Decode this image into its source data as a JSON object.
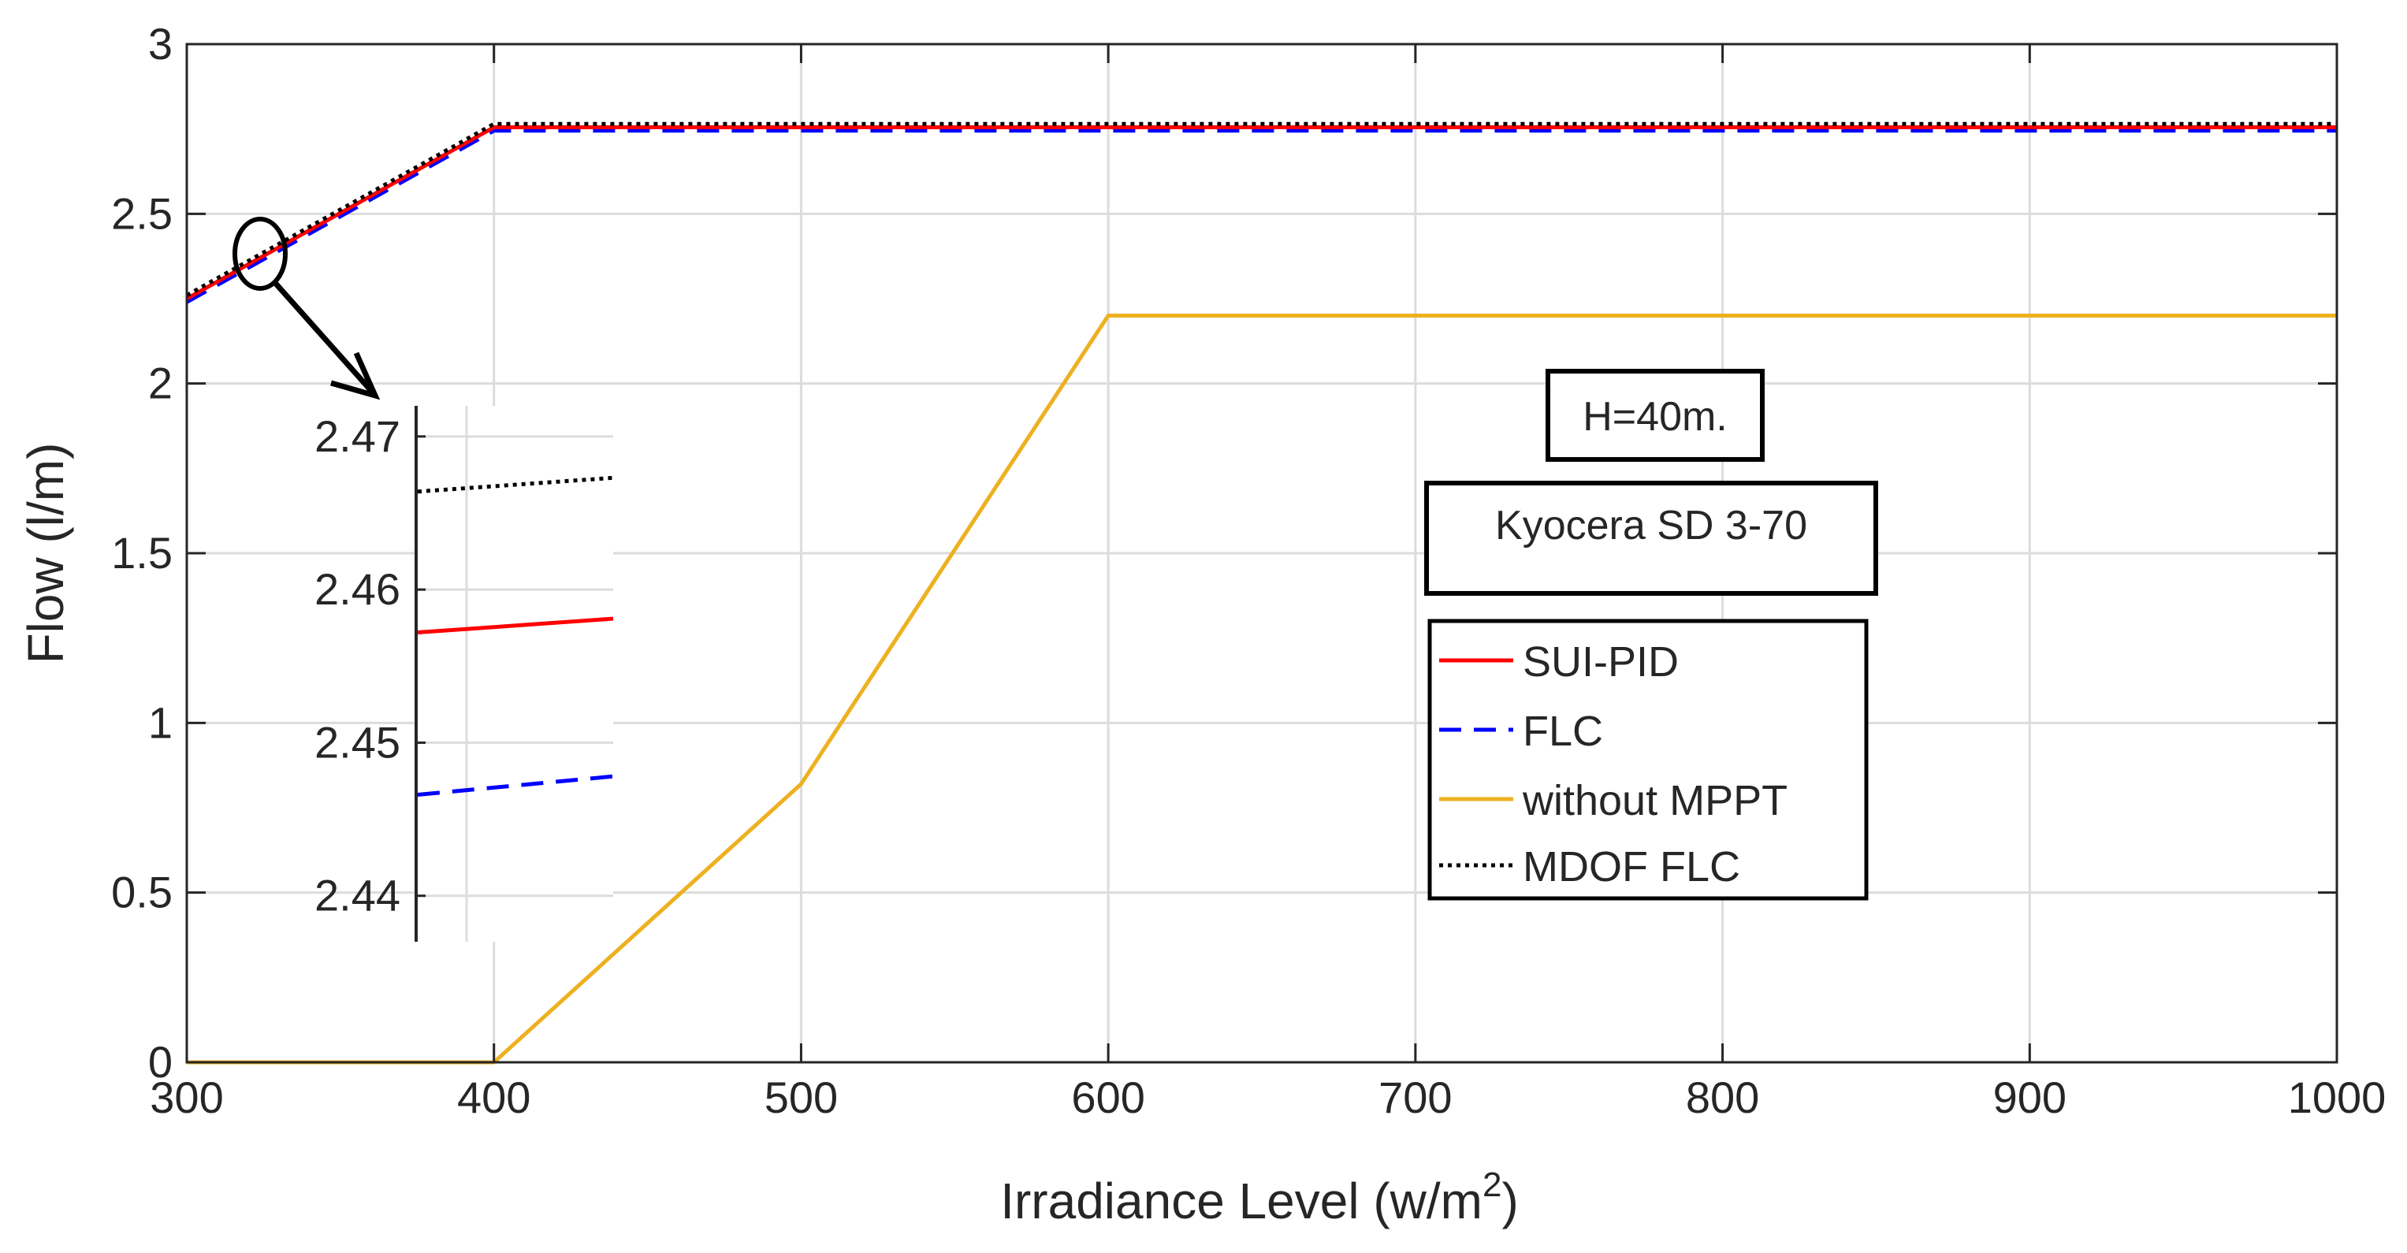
{
  "chart_data": {
    "type": "line",
    "title": "",
    "xlabel": "Irradiance Level (w/m",
    "xlabel_sup": "2",
    "xlabel_end": ")",
    "ylabel": "Flow (l/m)",
    "xlim": [
      300,
      1000
    ],
    "ylim": [
      0,
      3
    ],
    "xticks": [
      300,
      400,
      500,
      600,
      700,
      800,
      900,
      1000
    ],
    "yticks": [
      0,
      0.5,
      1,
      1.5,
      2,
      2.5,
      3
    ],
    "ytick_labels": [
      "0",
      "0.5",
      "1",
      "1.5",
      "2",
      "2.5",
      "3"
    ],
    "grid": true,
    "series": [
      {
        "name": "SUI-PID",
        "color": "#ff0000",
        "style": "solid",
        "x": [
          300,
          400,
          1000
        ],
        "y": [
          2.25,
          2.755,
          2.755
        ]
      },
      {
        "name": "FLC",
        "color": "#0000ff",
        "style": "dashed",
        "x": [
          300,
          400,
          1000
        ],
        "y": [
          2.24,
          2.745,
          2.745
        ]
      },
      {
        "name": "without MPPT",
        "color": "#edb120",
        "style": "solid",
        "x": [
          300,
          400,
          500,
          600,
          1000
        ],
        "y": [
          0,
          0,
          0.82,
          2.2,
          2.2
        ]
      },
      {
        "name": "MDOF FLC",
        "color": "#000000",
        "style": "dotted",
        "x": [
          300,
          400,
          1000
        ],
        "y": [
          2.26,
          2.765,
          2.765
        ]
      }
    ],
    "legend": {
      "location": "right",
      "entries": [
        "SUI-PID",
        "FLC",
        "without MPPT",
        "MDOF FLC"
      ]
    },
    "annotations": [
      "H=40m.",
      "Kyocera SD 3-70"
    ],
    "inset": {
      "ylim": [
        2.437,
        2.472
      ],
      "yticks": [
        2.44,
        2.45,
        2.46,
        2.47
      ],
      "ytick_labels": [
        "2.44",
        "2.45",
        "2.46",
        "2.47"
      ],
      "series": [
        {
          "name": "SUI-PID",
          "y": [
            2.4572,
            2.4581
          ]
        },
        {
          "name": "FLC",
          "y": [
            2.4466,
            2.4478
          ]
        },
        {
          "name": "MDOF FLC",
          "y": [
            2.4664,
            2.4673
          ]
        }
      ]
    }
  }
}
